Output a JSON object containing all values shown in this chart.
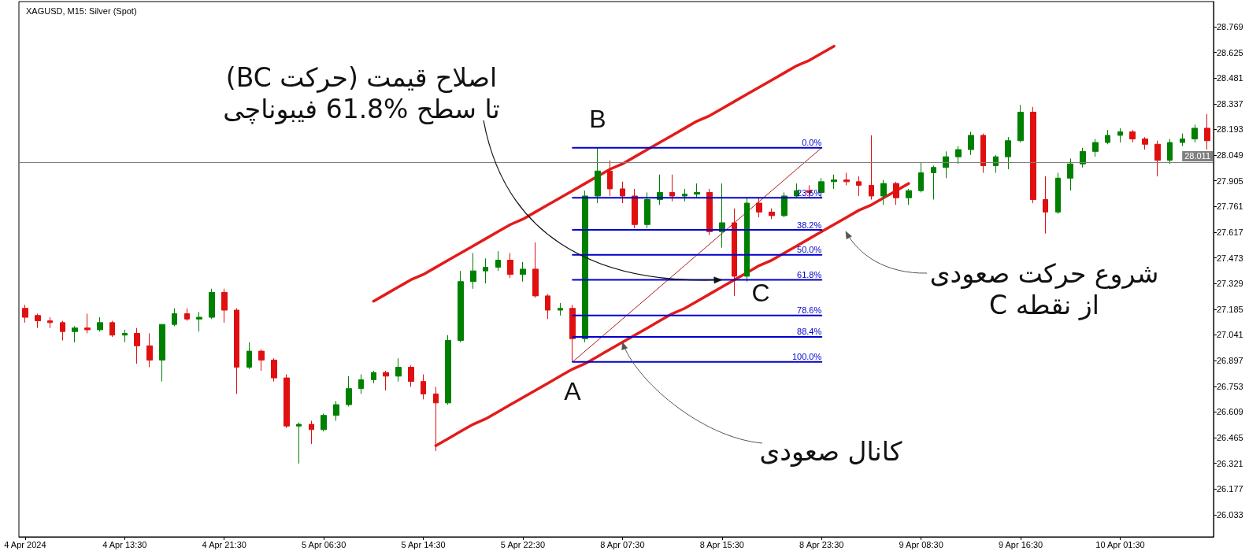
{
  "chart_data": {
    "type": "candlestick",
    "title": "XAGUSD, M15: Silver (Spot)",
    "categories": [
      "4 Apr 2024",
      null,
      null,
      null,
      null,
      null,
      null,
      null,
      "4 Apr 13:30",
      null,
      null,
      null,
      null,
      null,
      null,
      null,
      "4 Apr 21:30",
      null,
      null,
      null,
      null,
      null,
      null,
      null,
      "5 Apr 06:30",
      null,
      null,
      null,
      null,
      null,
      null,
      null,
      "5 Apr 14:30",
      null,
      null,
      null,
      null,
      null,
      null,
      null,
      "5 Apr 22:30",
      null,
      null,
      null,
      null,
      null,
      null,
      null,
      "8 Apr 07:30",
      null,
      null,
      null,
      null,
      null,
      null,
      null,
      "8 Apr 15:30",
      null,
      null,
      null,
      null,
      null,
      null,
      null,
      "8 Apr 23:30",
      null,
      null,
      null,
      null,
      null,
      null,
      null,
      "9 Apr 08:30",
      null,
      null,
      null,
      null,
      null,
      null,
      null,
      "9 Apr 16:30",
      null,
      null,
      null,
      null,
      null,
      null,
      null,
      "10 Apr 01:30",
      null,
      null,
      null,
      null,
      null,
      null,
      null
    ],
    "ohlc": [
      [
        27.19,
        27.21,
        27.11,
        27.14
      ],
      [
        27.15,
        27.16,
        27.08,
        27.12
      ],
      [
        27.12,
        27.14,
        27.08,
        27.11
      ],
      [
        27.11,
        27.12,
        27.01,
        27.06
      ],
      [
        27.06,
        27.09,
        27.0,
        27.08
      ],
      [
        27.08,
        27.16,
        27.05,
        27.07
      ],
      [
        27.07,
        27.14,
        27.06,
        27.11
      ],
      [
        27.11,
        27.12,
        27.03,
        27.04
      ],
      [
        27.04,
        27.07,
        27.0,
        27.05
      ],
      [
        27.05,
        27.08,
        26.88,
        26.98
      ],
      [
        26.98,
        27.05,
        26.86,
        26.9
      ],
      [
        26.9,
        27.1,
        26.78,
        27.1
      ],
      [
        27.1,
        27.19,
        27.09,
        27.16
      ],
      [
        27.16,
        27.19,
        27.12,
        27.13
      ],
      [
        27.13,
        27.17,
        27.06,
        27.14
      ],
      [
        27.14,
        27.3,
        27.13,
        27.28
      ],
      [
        27.28,
        27.3,
        27.11,
        27.18
      ],
      [
        27.18,
        27.19,
        26.71,
        26.86
      ],
      [
        26.86,
        27.0,
        26.85,
        26.95
      ],
      [
        26.95,
        26.96,
        26.84,
        26.9
      ],
      [
        26.9,
        26.91,
        26.78,
        26.8
      ],
      [
        26.8,
        26.82,
        26.52,
        26.53
      ],
      [
        26.53,
        26.55,
        26.32,
        26.54
      ],
      [
        26.54,
        26.56,
        26.43,
        26.51
      ],
      [
        26.51,
        26.6,
        26.5,
        26.59
      ],
      [
        26.59,
        26.67,
        26.56,
        26.65
      ],
      [
        26.65,
        26.81,
        26.64,
        26.74
      ],
      [
        26.74,
        26.82,
        26.71,
        26.79
      ],
      [
        26.79,
        26.84,
        26.77,
        26.83
      ],
      [
        26.83,
        26.84,
        26.73,
        26.81
      ],
      [
        26.81,
        26.91,
        26.78,
        26.86
      ],
      [
        26.86,
        26.87,
        26.75,
        26.78
      ],
      [
        26.78,
        26.82,
        26.68,
        26.71
      ],
      [
        26.71,
        26.75,
        26.39,
        26.66
      ],
      [
        26.66,
        27.04,
        26.65,
        27.01
      ],
      [
        27.01,
        27.4,
        27.0,
        27.34
      ],
      [
        27.34,
        27.5,
        27.3,
        27.4
      ],
      [
        27.4,
        27.47,
        27.33,
        27.42
      ],
      [
        27.42,
        27.51,
        27.4,
        27.46
      ],
      [
        27.46,
        27.5,
        27.36,
        27.38
      ],
      [
        27.38,
        27.45,
        27.34,
        27.41
      ],
      [
        27.41,
        27.56,
        27.25,
        27.26
      ],
      [
        27.26,
        27.27,
        27.13,
        27.18
      ],
      [
        27.18,
        27.22,
        27.15,
        27.19
      ],
      [
        27.19,
        27.21,
        26.89,
        27.02
      ],
      [
        27.02,
        27.85,
        27.0,
        27.82
      ],
      [
        27.82,
        28.09,
        27.78,
        27.96
      ],
      [
        27.96,
        28.02,
        27.82,
        27.86
      ],
      [
        27.86,
        27.9,
        27.78,
        27.82
      ],
      [
        27.82,
        27.86,
        27.64,
        27.66
      ],
      [
        27.66,
        27.84,
        27.64,
        27.8
      ],
      [
        27.8,
        27.94,
        27.77,
        27.84
      ],
      [
        27.84,
        27.94,
        27.79,
        27.82
      ],
      [
        27.82,
        27.86,
        27.79,
        27.83
      ],
      [
        27.83,
        27.89,
        27.81,
        27.84
      ],
      [
        27.84,
        27.86,
        27.6,
        27.62
      ],
      [
        27.62,
        27.89,
        27.53,
        27.67
      ],
      [
        27.67,
        27.75,
        27.26,
        27.37
      ],
      [
        27.37,
        27.81,
        27.34,
        27.78
      ],
      [
        27.78,
        27.81,
        27.7,
        27.73
      ],
      [
        27.73,
        27.75,
        27.69,
        27.71
      ],
      [
        27.71,
        27.84,
        27.7,
        27.82
      ],
      [
        27.82,
        27.89,
        27.81,
        27.85
      ],
      [
        27.85,
        27.88,
        27.81,
        27.84
      ],
      [
        27.84,
        27.92,
        27.81,
        27.9
      ],
      [
        27.9,
        27.94,
        27.86,
        27.91
      ],
      [
        27.91,
        27.95,
        27.88,
        27.9
      ],
      [
        27.9,
        27.93,
        27.82,
        27.88
      ],
      [
        27.88,
        28.16,
        27.8,
        27.82
      ],
      [
        27.82,
        27.91,
        27.77,
        27.89
      ],
      [
        27.89,
        27.9,
        27.77,
        27.81
      ],
      [
        27.81,
        27.86,
        27.77,
        27.85
      ],
      [
        27.85,
        28.01,
        27.84,
        27.95
      ],
      [
        27.95,
        27.99,
        27.8,
        27.98
      ],
      [
        27.98,
        28.07,
        27.92,
        28.04
      ],
      [
        28.04,
        28.1,
        28.0,
        28.08
      ],
      [
        28.08,
        28.18,
        28.05,
        28.16
      ],
      [
        28.16,
        28.17,
        27.95,
        27.99
      ],
      [
        27.99,
        28.05,
        27.95,
        28.04
      ],
      [
        28.04,
        28.15,
        27.97,
        28.13
      ],
      [
        28.13,
        28.33,
        28.12,
        28.29
      ],
      [
        28.29,
        28.32,
        27.78,
        27.8
      ],
      [
        27.8,
        27.93,
        27.61,
        27.73
      ],
      [
        27.73,
        27.95,
        27.72,
        27.92
      ],
      [
        27.92,
        28.03,
        27.85,
        28.0
      ],
      [
        28.0,
        28.09,
        27.98,
        28.07
      ],
      [
        28.07,
        28.14,
        28.04,
        28.12
      ],
      [
        28.12,
        28.19,
        28.11,
        28.16
      ],
      [
        28.16,
        28.2,
        28.12,
        28.18
      ],
      [
        28.18,
        28.19,
        28.12,
        28.14
      ],
      [
        28.14,
        28.15,
        28.08,
        28.11
      ],
      [
        28.11,
        28.13,
        27.93,
        28.02
      ],
      [
        28.02,
        28.14,
        28.0,
        28.12
      ],
      [
        28.12,
        28.17,
        28.1,
        28.14
      ],
      [
        28.14,
        28.22,
        28.12,
        28.2
      ],
      [
        28.2,
        28.28,
        28.08,
        28.13
      ]
    ],
    "colors": [
      "#e01010",
      "#e01010",
      "#e01010",
      "#e01010",
      "#008000",
      "#e01010",
      "#008000",
      "#e01010",
      "#008000",
      "#e01010",
      "#e01010",
      "#008000",
      "#008000",
      "#e01010",
      "#008000",
      "#008000",
      "#e01010",
      "#e01010",
      "#008000",
      "#e01010",
      "#e01010",
      "#e01010",
      "#008000",
      "#e01010",
      "#008000",
      "#008000",
      "#008000",
      "#008000",
      "#008000",
      "#e01010",
      "#008000",
      "#e01010",
      "#e01010",
      "#e01010",
      "#008000",
      "#008000",
      "#008000",
      "#008000",
      "#008000",
      "#e01010",
      "#008000",
      "#e01010",
      "#e01010",
      "#008000",
      "#e01010",
      "#008000",
      "#008000",
      "#e01010",
      "#e01010",
      "#e01010",
      "#008000",
      "#008000",
      "#e01010",
      "#008000",
      "#008000",
      "#e01010",
      "#008000",
      "#e01010",
      "#008000",
      "#e01010",
      "#e01010",
      "#008000",
      "#008000",
      "#e01010",
      "#008000",
      "#008000",
      "#e01010",
      "#e01010",
      "#e01010",
      "#008000",
      "#e01010",
      "#008000",
      "#008000",
      "#008000",
      "#008000",
      "#008000",
      "#008000",
      "#e01010",
      "#008000",
      "#008000",
      "#008000",
      "#e01010",
      "#e01010",
      "#008000",
      "#008000",
      "#008000",
      "#008000",
      "#008000",
      "#008000",
      "#e01010",
      "#e01010",
      "#e01010",
      "#008000",
      "#008000",
      "#008000",
      "#e01010"
    ],
    "ylim": [
      25.909,
      28.91
    ],
    "yticks": [
      26.033,
      26.177,
      26.321,
      26.465,
      26.609,
      26.753,
      26.897,
      27.041,
      27.185,
      27.329,
      27.473,
      27.617,
      27.761,
      27.905,
      28.049,
      28.193,
      28.337,
      28.481,
      28.625,
      28.769
    ],
    "marker": "none",
    "series": [
      {
        "type": "line",
        "name": "0.0%",
        "color": "#0000cc",
        "values": [
          null,
          null,
          null,
          null,
          null,
          null,
          null,
          null,
          null,
          null,
          null,
          null,
          null,
          null,
          null,
          null,
          null,
          null,
          null,
          null,
          null,
          null,
          null,
          null,
          null,
          null,
          null,
          null,
          null,
          null,
          null,
          null,
          null,
          null,
          null,
          null,
          null,
          null,
          null,
          null,
          null,
          null,
          null,
          null,
          28.09,
          28.09,
          28.09,
          28.09,
          28.09,
          28.09,
          28.09,
          28.09,
          28.09,
          28.09,
          28.09,
          28.09,
          28.09,
          28.09,
          28.09,
          28.09,
          28.09,
          28.09,
          28.09,
          28.09,
          28.09,
          null,
          null,
          null,
          null,
          null,
          null,
          null,
          null,
          null,
          null,
          null,
          null,
          null,
          null,
          null,
          null,
          null,
          null,
          null,
          null,
          null,
          null,
          null,
          null,
          null,
          null,
          null,
          null,
          null,
          null,
          null
        ]
      },
      {
        "type": "line",
        "name": "23.6%",
        "color": "#0000cc",
        "values": [
          null,
          null,
          null,
          null,
          null,
          null,
          null,
          null,
          null,
          null,
          null,
          null,
          null,
          null,
          null,
          null,
          null,
          null,
          null,
          null,
          null,
          null,
          null,
          null,
          null,
          null,
          null,
          null,
          null,
          null,
          null,
          null,
          null,
          null,
          null,
          null,
          null,
          null,
          null,
          null,
          null,
          null,
          null,
          null,
          27.81,
          27.81,
          27.81,
          27.81,
          27.81,
          27.81,
          27.81,
          27.81,
          27.81,
          27.81,
          27.81,
          27.81,
          27.81,
          27.81,
          27.81,
          27.81,
          27.81,
          27.81,
          27.81,
          27.81,
          27.81,
          null,
          null,
          null,
          null,
          null,
          null,
          null,
          null,
          null,
          null,
          null,
          null,
          null,
          null,
          null,
          null,
          null,
          null,
          null,
          null,
          null,
          null,
          null,
          null,
          null,
          null,
          null,
          null,
          null,
          null,
          null
        ]
      },
      {
        "type": "line",
        "name": "38.2%",
        "color": "#0000cc",
        "values": [
          null,
          null,
          null,
          null,
          null,
          null,
          null,
          null,
          null,
          null,
          null,
          null,
          null,
          null,
          null,
          null,
          null,
          null,
          null,
          null,
          null,
          null,
          null,
          null,
          null,
          null,
          null,
          null,
          null,
          null,
          null,
          null,
          null,
          null,
          null,
          null,
          null,
          null,
          null,
          null,
          null,
          null,
          null,
          null,
          27.63,
          27.63,
          27.63,
          27.63,
          27.63,
          27.63,
          27.63,
          27.63,
          27.63,
          27.63,
          27.63,
          27.63,
          27.63,
          27.63,
          27.63,
          27.63,
          27.63,
          27.63,
          27.63,
          27.63,
          27.63,
          null,
          null,
          null,
          null,
          null,
          null,
          null,
          null,
          null,
          null,
          null,
          null,
          null,
          null,
          null,
          null,
          null,
          null,
          null,
          null,
          null,
          null,
          null,
          null,
          null,
          null,
          null,
          null,
          null,
          null,
          null
        ]
      },
      {
        "type": "line",
        "name": "50.0%",
        "color": "#0000cc",
        "values": [
          null,
          null,
          null,
          null,
          null,
          null,
          null,
          null,
          null,
          null,
          null,
          null,
          null,
          null,
          null,
          null,
          null,
          null,
          null,
          null,
          null,
          null,
          null,
          null,
          null,
          null,
          null,
          null,
          null,
          null,
          null,
          null,
          null,
          null,
          null,
          null,
          null,
          null,
          null,
          null,
          null,
          null,
          null,
          null,
          27.49,
          27.49,
          27.49,
          27.49,
          27.49,
          27.49,
          27.49,
          27.49,
          27.49,
          27.49,
          27.49,
          27.49,
          27.49,
          27.49,
          27.49,
          27.49,
          27.49,
          27.49,
          27.49,
          27.49,
          27.49,
          null,
          null,
          null,
          null,
          null,
          null,
          null,
          null,
          null,
          null,
          null,
          null,
          null,
          null,
          null,
          null,
          null,
          null,
          null,
          null,
          null,
          null,
          null,
          null,
          null,
          null,
          null,
          null,
          null,
          null,
          null
        ]
      },
      {
        "type": "line",
        "name": "61.8%",
        "color": "#0000cc",
        "values": [
          null,
          null,
          null,
          null,
          null,
          null,
          null,
          null,
          null,
          null,
          null,
          null,
          null,
          null,
          null,
          null,
          null,
          null,
          null,
          null,
          null,
          null,
          null,
          null,
          null,
          null,
          null,
          null,
          null,
          null,
          null,
          null,
          null,
          null,
          null,
          null,
          null,
          null,
          null,
          null,
          null,
          null,
          null,
          null,
          27.35,
          27.35,
          27.35,
          27.35,
          27.35,
          27.35,
          27.35,
          27.35,
          27.35,
          27.35,
          27.35,
          27.35,
          27.35,
          27.35,
          27.35,
          27.35,
          27.35,
          27.35,
          27.35,
          27.35,
          27.35,
          null,
          null,
          null,
          null,
          null,
          null,
          null,
          null,
          null,
          null,
          null,
          null,
          null,
          null,
          null,
          null,
          null,
          null,
          null,
          null,
          null,
          null,
          null,
          null,
          null,
          null,
          null,
          null,
          null,
          null,
          null
        ]
      },
      {
        "type": "line",
        "name": "78.6%",
        "color": "#0000cc",
        "values": [
          null,
          null,
          null,
          null,
          null,
          null,
          null,
          null,
          null,
          null,
          null,
          null,
          null,
          null,
          null,
          null,
          null,
          null,
          null,
          null,
          null,
          null,
          null,
          null,
          null,
          null,
          null,
          null,
          null,
          null,
          null,
          null,
          null,
          null,
          null,
          null,
          null,
          null,
          null,
          null,
          null,
          null,
          null,
          null,
          27.15,
          27.15,
          27.15,
          27.15,
          27.15,
          27.15,
          27.15,
          27.15,
          27.15,
          27.15,
          27.15,
          27.15,
          27.15,
          27.15,
          27.15,
          27.15,
          27.15,
          27.15,
          27.15,
          27.15,
          27.15,
          null,
          null,
          null,
          null,
          null,
          null,
          null,
          null,
          null,
          null,
          null,
          null,
          null,
          null,
          null,
          null,
          null,
          null,
          null,
          null,
          null,
          null,
          null,
          null,
          null,
          null,
          null,
          null,
          null,
          null,
          null
        ]
      },
      {
        "type": "line",
        "name": "88.4%",
        "color": "#0000cc",
        "values": [
          null,
          null,
          null,
          null,
          null,
          null,
          null,
          null,
          null,
          null,
          null,
          null,
          null,
          null,
          null,
          null,
          null,
          null,
          null,
          null,
          null,
          null,
          null,
          null,
          null,
          null,
          null,
          null,
          null,
          null,
          null,
          null,
          null,
          null,
          null,
          null,
          null,
          null,
          null,
          null,
          null,
          null,
          null,
          null,
          27.03,
          27.03,
          27.03,
          27.03,
          27.03,
          27.03,
          27.03,
          27.03,
          27.03,
          27.03,
          27.03,
          27.03,
          27.03,
          27.03,
          27.03,
          27.03,
          27.03,
          27.03,
          27.03,
          27.03,
          27.03,
          null,
          null,
          null,
          null,
          null,
          null,
          null,
          null,
          null,
          null,
          null,
          null,
          null,
          null,
          null,
          null,
          null,
          null,
          null,
          null,
          null,
          null,
          null,
          null,
          null,
          null,
          null,
          null,
          null,
          null,
          null
        ]
      },
      {
        "type": "line",
        "name": "100.0%",
        "color": "#0000cc",
        "values": [
          null,
          null,
          null,
          null,
          null,
          null,
          null,
          null,
          null,
          null,
          null,
          null,
          null,
          null,
          null,
          null,
          null,
          null,
          null,
          null,
          null,
          null,
          null,
          null,
          null,
          null,
          null,
          null,
          null,
          null,
          null,
          null,
          null,
          null,
          null,
          null,
          null,
          null,
          null,
          null,
          null,
          null,
          null,
          null,
          26.89,
          26.89,
          26.89,
          26.89,
          26.89,
          26.89,
          26.89,
          26.89,
          26.89,
          26.89,
          26.89,
          26.89,
          26.89,
          26.89,
          26.89,
          26.89,
          26.89,
          26.89,
          26.89,
          26.89,
          26.89,
          null,
          null,
          null,
          null,
          null,
          null,
          null,
          null,
          null,
          null,
          null,
          null,
          null,
          null,
          null,
          null,
          null,
          null,
          null,
          null,
          null,
          null,
          null,
          null,
          null,
          null,
          null,
          null,
          null,
          null,
          null
        ]
      },
      {
        "type": "line",
        "color": "#e31b1b",
        "values": [
          null,
          null,
          null,
          null,
          null,
          null,
          null,
          null,
          null,
          null,
          null,
          null,
          null,
          null,
          null,
          null,
          null,
          null,
          null,
          null,
          null,
          null,
          null,
          null,
          null,
          null,
          null,
          null,
          27.23,
          27.27,
          27.31,
          27.35,
          27.38,
          27.42,
          27.46,
          27.5,
          27.54,
          27.58,
          27.62,
          27.66,
          27.69,
          27.73,
          27.77,
          27.81,
          27.85,
          27.89,
          27.93,
          27.97,
          28.0,
          28.04,
          28.08,
          28.12,
          28.16,
          28.2,
          28.24,
          28.27,
          28.31,
          28.35,
          28.39,
          28.43,
          28.47,
          28.51,
          28.55,
          28.58,
          28.62,
          28.66,
          null,
          null,
          null,
          null,
          null,
          null,
          null,
          null,
          null,
          null,
          null,
          null,
          null,
          null,
          null,
          null,
          null,
          null,
          null,
          null,
          null,
          null,
          null,
          null,
          null,
          null,
          null,
          null,
          null,
          null
        ]
      },
      {
        "type": "line",
        "color": "#e31b1b",
        "values": [
          null,
          null,
          null,
          null,
          null,
          null,
          null,
          null,
          null,
          null,
          null,
          null,
          null,
          null,
          null,
          null,
          null,
          null,
          null,
          null,
          null,
          null,
          null,
          null,
          null,
          null,
          null,
          null,
          null,
          null,
          null,
          null,
          null,
          26.42,
          26.46,
          26.5,
          26.54,
          26.57,
          26.61,
          26.65,
          26.69,
          26.73,
          26.77,
          26.81,
          26.85,
          26.88,
          26.92,
          26.96,
          27.0,
          27.04,
          27.08,
          27.12,
          27.16,
          27.19,
          27.23,
          27.27,
          27.31,
          27.35,
          27.39,
          27.43,
          27.46,
          27.5,
          27.54,
          27.58,
          27.62,
          27.66,
          27.7,
          27.74,
          27.77,
          27.81,
          27.85,
          27.89,
          null,
          null,
          null,
          null,
          null,
          null,
          null,
          null,
          null,
          null,
          null,
          null,
          null,
          null,
          null,
          null,
          null,
          null,
          null,
          null,
          null,
          null,
          null,
          null
        ]
      },
      {
        "type": "line",
        "color": "#b01818",
        "values": [
          null,
          null,
          null,
          null,
          null,
          null,
          null,
          null,
          null,
          null,
          null,
          null,
          null,
          null,
          null,
          null,
          null,
          null,
          null,
          null,
          null,
          null,
          null,
          null,
          null,
          null,
          null,
          null,
          null,
          null,
          null,
          null,
          null,
          null,
          null,
          null,
          null,
          null,
          null,
          null,
          null,
          null,
          null,
          null,
          26.89,
          26.95,
          27.01,
          27.07,
          27.13,
          27.19,
          27.25,
          27.31,
          27.37,
          27.43,
          27.49,
          27.55,
          27.61,
          27.67,
          27.73,
          27.79,
          27.85,
          27.91,
          27.97,
          28.03,
          28.09,
          null,
          null,
          null,
          null,
          null,
          null,
          null,
          null,
          null,
          null,
          null,
          null,
          null,
          null,
          null,
          null,
          null,
          null,
          null,
          null,
          null,
          null,
          null,
          null,
          null,
          null,
          null,
          null,
          null,
          null,
          null
        ]
      }
    ],
    "ref_lines": [
      {
        "axis": "y",
        "value": 28.011,
        "label": "28.011",
        "color": "#808080"
      }
    ],
    "annotations": [
      "A",
      "B",
      "C",
      {
        "text": "اصلاح قیمت (حرکت BC)\nتا سطح 61.8% فیبوناچی",
        "x": "8 Apr 15:30",
        "y": 27.35
      },
      "شروع حرکت صعودی\nاز نقطه C",
      {
        "text": "کانال صعودی",
        "x": "8 Apr 07:30",
        "y": 27.0
      }
    ]
  }
}
